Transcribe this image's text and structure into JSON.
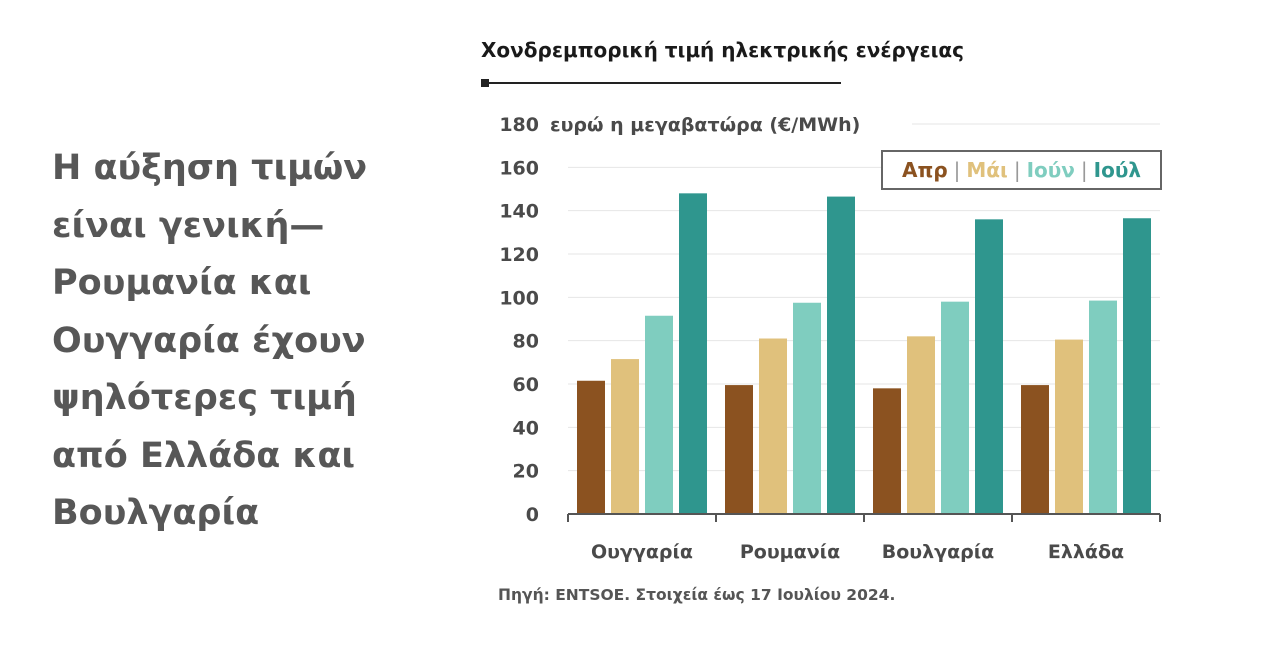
{
  "headline": "Η αύξηση τιμών είναι γενική—Ρουμανία και Ουγγαρία έχουν ψηλότερες τιμή από Ελλάδα και Βουλγαρία",
  "source": "Πηγή: ENTSOE. Στοιχεία έως 17 Ιουλίου 2024.",
  "chart_data": {
    "type": "bar",
    "title": "Χονδρεμπορική τιμή ηλεκτρικής ενέργειας",
    "ylabel": "ευρώ η μεγαβατώρα (€/MWh)",
    "xlabel": "",
    "categories": [
      "Ουγγαρία",
      "Ρουμανία",
      "Βουλγαρία",
      "Ελλάδα"
    ],
    "ylim": [
      0,
      180
    ],
    "yticks": [
      0,
      20,
      40,
      60,
      80,
      100,
      120,
      140,
      160,
      180
    ],
    "grid": true,
    "legend_position": "top-right",
    "series": [
      {
        "name": "Απρ",
        "color": "#8b5220",
        "values": [
          61.5,
          59.5,
          58,
          59.5
        ]
      },
      {
        "name": "Μάι",
        "color": "#e0c17c",
        "values": [
          71.5,
          81,
          82,
          80.5
        ]
      },
      {
        "name": "Ιούν",
        "color": "#7fcdbf",
        "values": [
          91.5,
          97.5,
          98,
          98.5
        ]
      },
      {
        "name": "Ιούλ",
        "color": "#2f968e",
        "values": [
          148,
          146.5,
          136,
          136.5
        ]
      }
    ]
  }
}
